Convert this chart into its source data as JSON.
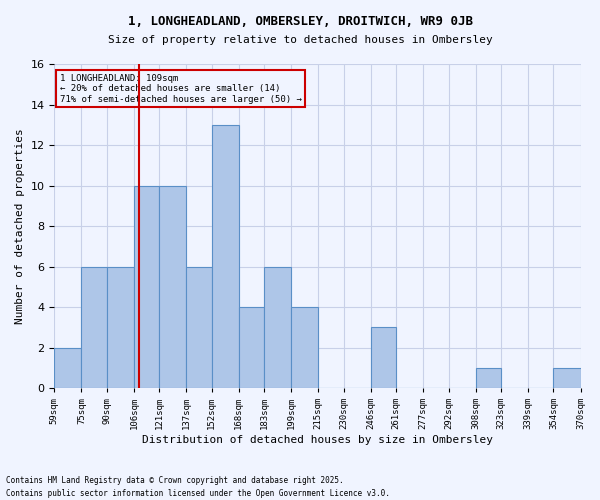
{
  "title1": "1, LONGHEADLAND, OMBERSLEY, DROITWICH, WR9 0JB",
  "title2": "Size of property relative to detached houses in Ombersley",
  "xlabel": "Distribution of detached houses by size in Ombersley",
  "ylabel": "Number of detached properties",
  "footnote1": "Contains HM Land Registry data © Crown copyright and database right 2025.",
  "footnote2": "Contains public sector information licensed under the Open Government Licence v3.0.",
  "annotation_line1": "1 LONGHEADLAND: 109sqm",
  "annotation_line2": "← 20% of detached houses are smaller (14)",
  "annotation_line3": "71% of semi-detached houses are larger (50) →",
  "property_size": 109,
  "bin_edges": [
    59,
    75,
    90,
    106,
    121,
    137,
    152,
    168,
    183,
    199,
    215,
    230,
    246,
    261,
    277,
    292,
    308,
    323,
    339,
    354,
    370
  ],
  "counts": [
    2,
    6,
    6,
    10,
    10,
    6,
    13,
    4,
    6,
    4,
    0,
    0,
    3,
    0,
    0,
    0,
    1,
    0,
    0,
    1
  ],
  "bar_color": "#aec6e8",
  "bar_edge_color": "#5a8fc7",
  "vline_color": "#cc0000",
  "vline_x": 109,
  "annotation_box_edge": "#cc0000",
  "background_color": "#f0f4ff",
  "grid_color": "#c8d0e8",
  "ylim": [
    0,
    16
  ],
  "yticks": [
    0,
    2,
    4,
    6,
    8,
    10,
    12,
    14,
    16
  ]
}
